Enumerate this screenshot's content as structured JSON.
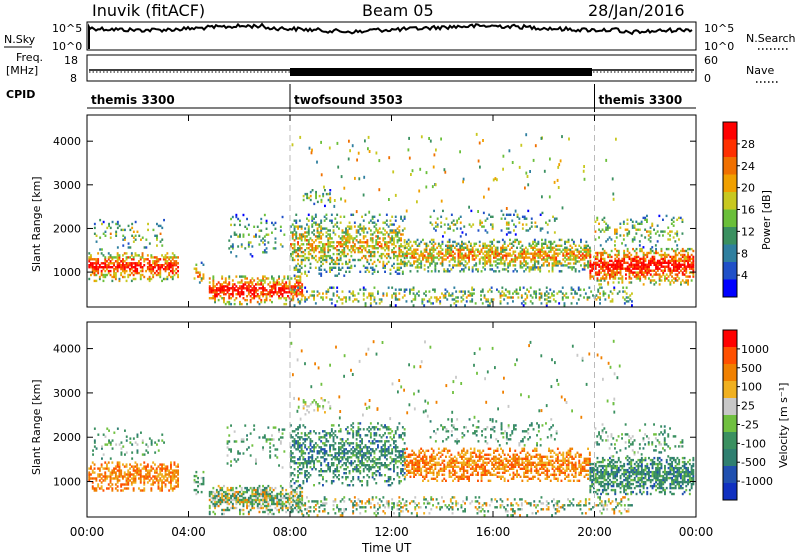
{
  "header": {
    "station": "Inuvik (fitACF)",
    "beam": "Beam 05",
    "date": "28/Jan/2016"
  },
  "top_panels": {
    "nsky_label": "N.Sky",
    "nsearch_label": "N.Search",
    "nsky_tick_high": "10^5",
    "nsky_tick_low": "10^0",
    "freq_label": "Freq.",
    "freq_unit": "[MHz]",
    "freq_tick_high": "18",
    "freq_tick_low": "8",
    "nave_label": "Nave",
    "nave_tick_high": "60",
    "nave_tick_low": "0",
    "cpid_label": "CPID",
    "cpid_segments": [
      {
        "label": "themis 3300",
        "start_hour": 0,
        "end_hour": 8.0
      },
      {
        "label": "twofsound 3503",
        "start_hour": 8.0,
        "end_hour": 20.0
      },
      {
        "label": "themis 3300",
        "start_hour": 20.0,
        "end_hour": 24
      }
    ]
  },
  "chart_data": [
    {
      "type": "heatmap",
      "name": "power",
      "ylabel": "Slant Range [km]",
      "ylim": [
        200,
        4600
      ],
      "yticks": [
        "1000",
        "2000",
        "3000",
        "4000"
      ],
      "colorbar_label": "Power [dB]",
      "colorbar_ticks": [
        "4",
        "8",
        "12",
        "16",
        "20",
        "24",
        "28"
      ],
      "colorbar_range": [
        0,
        32
      ],
      "colors": [
        "#0000ff",
        "#2050c8",
        "#2f7f9f",
        "#3a9060",
        "#6abf3a",
        "#c8c820",
        "#f0a000",
        "#f07000",
        "#ff3000",
        "#ff0000"
      ]
    },
    {
      "type": "heatmap",
      "name": "velocity",
      "ylabel": "Slant Range [km]",
      "ylim": [
        200,
        4600
      ],
      "yticks": [
        "1000",
        "2000",
        "3000",
        "4000"
      ],
      "colorbar_label": "Velocity [m s⁻¹]",
      "colorbar_ticks": [
        "1000",
        "500",
        "100",
        "25",
        "-25",
        "-100",
        "-500",
        "-1000"
      ],
      "colors": [
        "#1030c0",
        "#2050b0",
        "#2f7f70",
        "#3a9060",
        "#70c040",
        "#c8c8c8",
        "#f0b020",
        "#f08000",
        "#ff5000",
        "#ff0000"
      ]
    }
  ],
  "x_axis": {
    "label": "Time UT",
    "ticks": [
      "00:00",
      "04:00",
      "08:00",
      "12:00",
      "16:00",
      "20:00",
      "00:00"
    ]
  },
  "patches": [
    {
      "t0": 0.05,
      "t1": 3.6,
      "r0": 780,
      "r1": 1450,
      "p": 0.85,
      "vel": "orange",
      "density": 0.55
    },
    {
      "t0": 0.2,
      "t1": 3.0,
      "r0": 1500,
      "r1": 2200,
      "p": 0.45,
      "vel": "green",
      "density": 0.12
    },
    {
      "t0": 4.2,
      "t1": 4.6,
      "r0": 700,
      "r1": 1200,
      "p": 0.6,
      "vel": "green",
      "density": 0.3
    },
    {
      "t0": 4.8,
      "t1": 8.5,
      "r0": 250,
      "r1": 900,
      "p": 0.9,
      "vel": "mixed",
      "density": 0.6
    },
    {
      "t0": 5.5,
      "t1": 7.8,
      "r0": 1300,
      "r1": 2300,
      "p": 0.35,
      "vel": "green",
      "density": 0.12
    },
    {
      "t0": 8.0,
      "t1": 12.5,
      "r0": 900,
      "r1": 2300,
      "p": 0.55,
      "vel": "darkgreen",
      "density": 0.42
    },
    {
      "t0": 8.5,
      "t1": 9.6,
      "r0": 2500,
      "r1": 2900,
      "p": 0.4,
      "vel": "grey",
      "density": 0.25
    },
    {
      "t0": 12.5,
      "t1": 19.8,
      "r0": 1000,
      "r1": 1750,
      "p": 0.6,
      "vel": "orange",
      "density": 0.55
    },
    {
      "t0": 13.5,
      "t1": 18.5,
      "r0": 1800,
      "r1": 2400,
      "p": 0.4,
      "vel": "green",
      "density": 0.15
    },
    {
      "t0": 8.0,
      "t1": 21.5,
      "r0": 220,
      "r1": 650,
      "p": 0.45,
      "vel": "mixed",
      "density": 0.25
    },
    {
      "t0": 19.8,
      "t1": 23.9,
      "r0": 700,
      "r1": 1550,
      "p": 0.9,
      "vel": "darkgreen",
      "density": 0.6
    },
    {
      "t0": 20.0,
      "t1": 23.5,
      "r0": 1550,
      "r1": 2300,
      "p": 0.45,
      "vel": "green",
      "density": 0.18
    }
  ]
}
